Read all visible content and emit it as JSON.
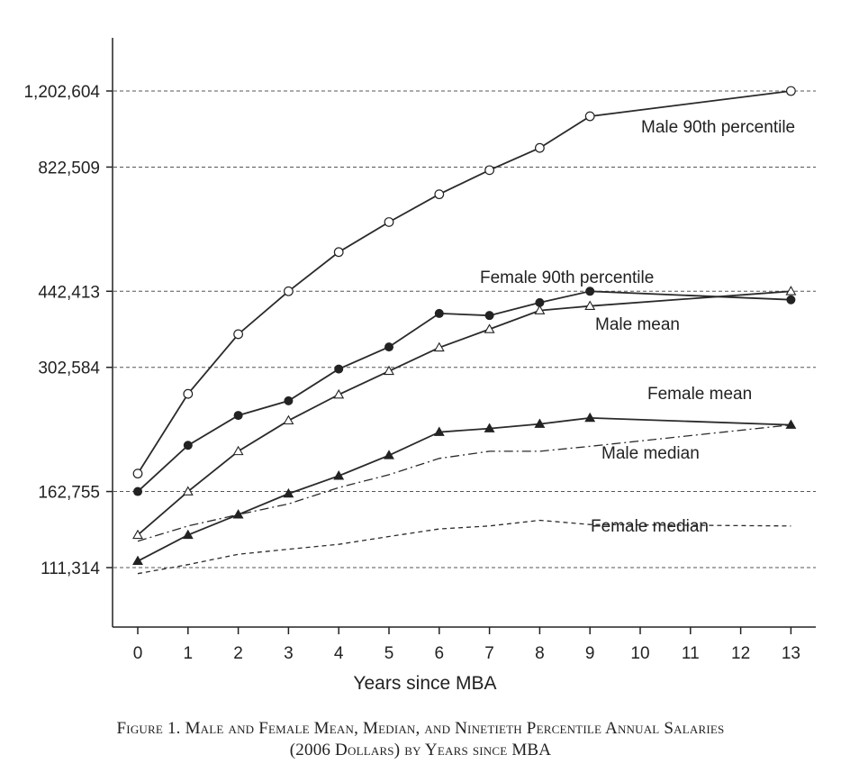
{
  "chart_data": {
    "type": "line",
    "xlabel": "Years since MBA",
    "x_ticks": [
      "0",
      "1",
      "2",
      "3",
      "4",
      "5",
      "6",
      "7",
      "8",
      "9",
      "10",
      "11",
      "12",
      "13"
    ],
    "y_scale": "log",
    "y_ticks": [
      "1,202,604",
      "822,509",
      "442,413",
      "302,584",
      "162,755",
      "111,314"
    ],
    "grid": "horizontal dashed",
    "series": [
      {
        "name": "Male 90th percentile",
        "marker": "open-circle",
        "line": "solid",
        "x": [
          0,
          1,
          2,
          3,
          4,
          5,
          6,
          7,
          8,
          9,
          13
        ],
        "y": [
          178000,
          265000,
          357000,
          442413,
          538000,
          625000,
          718000,
          810000,
          905000,
          1060000,
          1202604
        ]
      },
      {
        "name": "Female 90th percentile",
        "marker": "filled-circle",
        "line": "solid",
        "x": [
          0,
          1,
          2,
          3,
          4,
          5,
          6,
          7,
          8,
          9,
          13
        ],
        "y": [
          162755,
          205000,
          238000,
          256000,
          300000,
          335000,
          396000,
          392000,
          418000,
          442413,
          424000
        ]
      },
      {
        "name": "Male mean",
        "marker": "open-triangle",
        "line": "solid",
        "x": [
          0,
          1,
          2,
          3,
          4,
          5,
          6,
          7,
          8,
          9,
          13
        ],
        "y": [
          131000,
          162755,
          199000,
          232000,
          264000,
          297000,
          334000,
          366000,
          402000,
          411000,
          442413
        ]
      },
      {
        "name": "Female mean",
        "marker": "filled-triangle",
        "line": "solid",
        "x": [
          0,
          1,
          2,
          3,
          4,
          5,
          6,
          7,
          8,
          9,
          13
        ],
        "y": [
          115000,
          131000,
          145000,
          161000,
          176000,
          195000,
          219000,
          223000,
          228000,
          235000,
          227000
        ]
      },
      {
        "name": "Male median",
        "marker": "none",
        "line": "dash-dot",
        "x": [
          0,
          1,
          2,
          3,
          4,
          5,
          6,
          7,
          8,
          9,
          13
        ],
        "y": [
          127000,
          137000,
          145000,
          153000,
          166000,
          177000,
          192000,
          199000,
          199000,
          204000,
          227000
        ]
      },
      {
        "name": "Female median",
        "marker": "none",
        "line": "dashed",
        "x": [
          0,
          1,
          2,
          3,
          4,
          5,
          6,
          7,
          8,
          9,
          13
        ],
        "y": [
          108000,
          113000,
          119000,
          122000,
          125000,
          130000,
          135000,
          137000,
          141000,
          138000,
          137000
        ]
      }
    ]
  },
  "caption": {
    "line1": "Figure 1. Male and Female Mean, Median, and Ninetieth Percentile Annual Salaries",
    "line2": "(2006 Dollars) by Years since MBA"
  }
}
